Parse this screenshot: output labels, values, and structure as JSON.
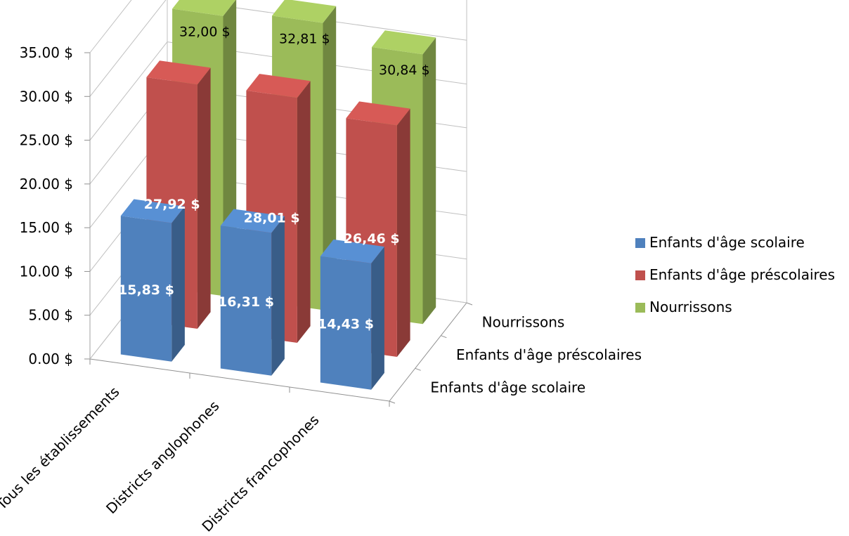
{
  "chart_data": {
    "type": "bar",
    "variant": "3d-column",
    "title": "",
    "categories": [
      "Tous les établissements",
      "Districts anglophones",
      "Districts francophones"
    ],
    "series": [
      {
        "name": "Enfants d'âge scolaire",
        "color": "#4f81bd",
        "values": [
          15.83,
          16.31,
          14.43
        ],
        "labels": [
          "15,83 $",
          "16,31 $",
          "14,43 $"
        ]
      },
      {
        "name": "Enfants d'âge préscolaires",
        "color": "#c0504d",
        "values": [
          27.92,
          28.01,
          26.46
        ],
        "labels": [
          "27,92 $",
          "28,01 $",
          "26,46 $"
        ]
      },
      {
        "name": "Nourrissons",
        "color": "#9bbb59",
        "values": [
          32.0,
          32.81,
          30.84
        ],
        "labels": [
          "32,00 $",
          "32,81 $",
          "30,84 $"
        ]
      }
    ],
    "depth_axis_labels": [
      "Enfants d'âge scolaire",
      "Enfants d'âge préscolaires",
      "Nourrissons"
    ],
    "y_ticks": [
      "0.00 $",
      "5.00 $",
      "10.00 $",
      "15.00 $",
      "20.00 $",
      "25.00 $",
      "30.00 $",
      "35.00 $"
    ],
    "ylim": [
      0,
      35
    ],
    "grid": true,
    "legend_position": "right"
  }
}
